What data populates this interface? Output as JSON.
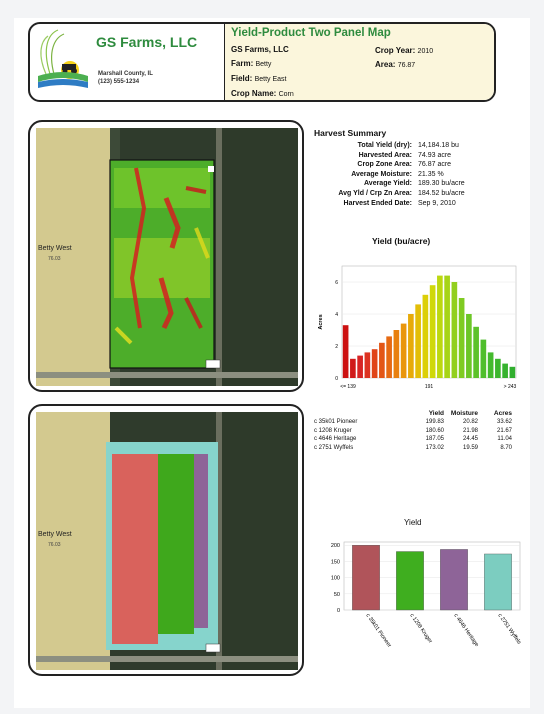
{
  "header": {
    "company_name": "GS Farms, LLC",
    "company_location": "Marshall County, IL",
    "company_phone": "(123) 555-1234",
    "report_title": "Yield-Product Two Panel Map",
    "grower_name": "GS Farms, LLC",
    "farm_label": "Farm:",
    "farm_value": "Betty",
    "field_label": "Field:",
    "field_value": "Betty East",
    "crop_label": "Crop Name:",
    "crop_value": "Corn",
    "crop_year_label": "Crop Year:",
    "crop_year_value": "2010",
    "area_label": "Area:",
    "area_value": "76.87"
  },
  "map": {
    "neighbor_field_name": "Betty West",
    "neighbor_field_area": "76.03"
  },
  "summary": {
    "title": "Harvest Summary",
    "rows": [
      {
        "key": "Total Yield (dry):",
        "value": "14,184.18 bu"
      },
      {
        "key": "Harvested Area:",
        "value": "74.93 acre"
      },
      {
        "key": "Crop Zone Area:",
        "value": "76.87 acre"
      },
      {
        "key": "Average Moisture:",
        "value": "21.35 %"
      },
      {
        "key": "Average Yield:",
        "value": "189.30 bu/acre"
      },
      {
        "key": "Avg Yld / Crp Zn Area:",
        "value": "184.52 bu/acre"
      },
      {
        "key": "Harvest Ended Date:",
        "value": "Sep 9, 2010"
      }
    ]
  },
  "varieties": {
    "headers": [
      "",
      "Yield",
      "Moisture",
      "Acres"
    ],
    "rows": [
      {
        "name": "c 35k01 Pioneer",
        "yield": "199.83",
        "moisture": "20.82",
        "acres": "33.62"
      },
      {
        "name": "c 1208 Kruger",
        "yield": "180.60",
        "moisture": "21.98",
        "acres": "21.67"
      },
      {
        "name": "c 4646 Heritage",
        "yield": "187.05",
        "moisture": "24.45",
        "acres": "11.04"
      },
      {
        "name": "c 2751 Wyffels",
        "yield": "173.02",
        "moisture": "19.59",
        "acres": "8.70"
      }
    ]
  },
  "chart_data": [
    {
      "type": "bar",
      "title": "Yield (bu/acre)",
      "ylabel": "Acres",
      "ylim": [
        0,
        7
      ],
      "yticks": [
        "0",
        "2",
        "4",
        "6"
      ],
      "xticks": [
        "<= 139",
        "191",
        "> 243"
      ],
      "values": [
        3.3,
        1.2,
        1.4,
        1.6,
        1.8,
        2.2,
        2.6,
        3.0,
        3.4,
        4.0,
        4.6,
        5.2,
        5.8,
        6.4,
        6.4,
        6.0,
        5.0,
        4.0,
        3.2,
        2.4,
        1.6,
        1.2,
        0.9,
        0.7
      ],
      "colors": [
        "#cc1111",
        "#d01a1a",
        "#d72424",
        "#dd3322",
        "#e04418",
        "#e35616",
        "#e66a12",
        "#e8800f",
        "#e9960c",
        "#e7aa0a",
        "#e3be08",
        "#dccf08",
        "#cfd80a",
        "#bcd810",
        "#a7d418",
        "#92cf1e",
        "#7fcb22",
        "#6cc626",
        "#5cc22a",
        "#4fbe2c",
        "#44ba2e",
        "#3cb62e",
        "#36b22e",
        "#30ae2e"
      ]
    },
    {
      "type": "bar",
      "title": "Yield",
      "ylim": [
        0,
        210
      ],
      "yticks": [
        "0",
        "50",
        "100",
        "150",
        "200"
      ],
      "categories": [
        "c 35k01 Pioneer",
        "c 1208 Kruger",
        "c 4646 Heritage",
        "c 2751 Wyffels"
      ],
      "values": [
        199.83,
        180.6,
        187.05,
        173.02
      ],
      "colors": [
        "#b0545a",
        "#3fae1f",
        "#8e6498",
        "#7ccdc0"
      ]
    }
  ]
}
